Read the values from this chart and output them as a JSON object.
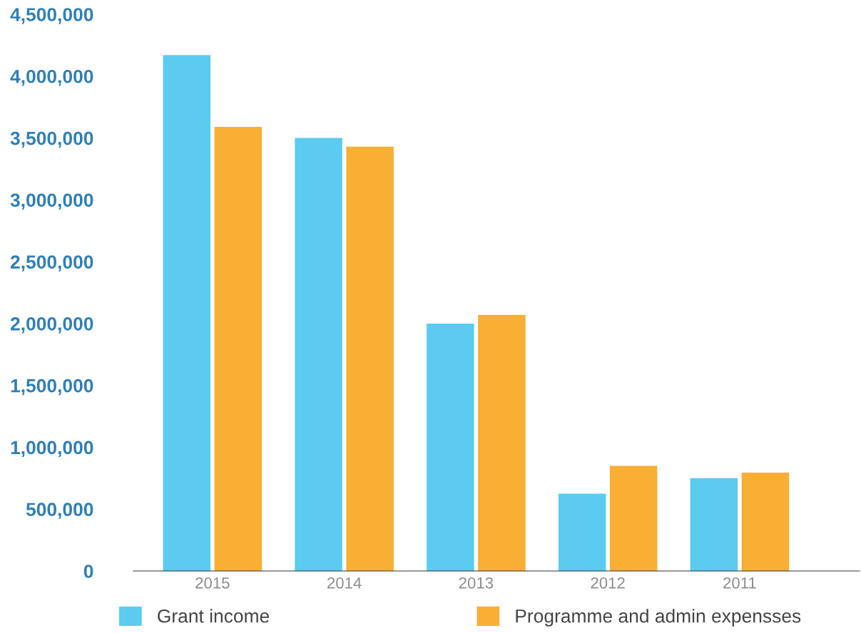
{
  "chart_data": {
    "type": "bar",
    "categories": [
      "2015",
      "2014",
      "2013",
      "2012",
      "2011"
    ],
    "series": [
      {
        "name": "Grant income",
        "color": "#5bcbef",
        "values": [
          4170000,
          3500000,
          2000000,
          625000,
          750000
        ]
      },
      {
        "name": "Programme and admin expensses",
        "color": "#f9af33",
        "values": [
          3590000,
          3430000,
          2070000,
          850000,
          795000
        ]
      }
    ],
    "ylim": [
      0,
      4500000
    ],
    "yticks": [
      0,
      {
        "value": 500000,
        "label": "500,000"
      },
      {
        "value": 1000000,
        "label": "1,000,000"
      },
      {
        "value": 1500000,
        "label": "1,500,000"
      },
      {
        "value": 2000000,
        "label": "2,000,000"
      },
      {
        "value": 2500000,
        "label": "2,500,000"
      },
      {
        "value": 3000000,
        "label": "3,000,000"
      },
      {
        "value": 3500000,
        "label": "3,500,000"
      },
      {
        "value": 4000000,
        "label": "4,000,000"
      },
      {
        "value": 4500000,
        "label": "4,500,000"
      }
    ],
    "grid": false,
    "legend": "bottom"
  }
}
